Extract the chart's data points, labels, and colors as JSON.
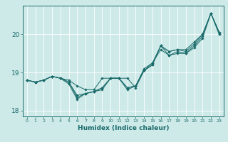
{
  "xlabel": "Humidex (Indice chaleur)",
  "ylabel": "",
  "bg_color": "#ceeae8",
  "line_color": "#1a6b6b",
  "grid_color": "#ffffff",
  "xlim": [
    -0.5,
    23.5
  ],
  "ylim": [
    17.85,
    20.75
  ],
  "yticks": [
    18,
    19,
    20
  ],
  "xticks": [
    0,
    1,
    2,
    3,
    4,
    5,
    6,
    7,
    8,
    9,
    10,
    11,
    12,
    13,
    14,
    15,
    16,
    17,
    18,
    19,
    20,
    21,
    22,
    23
  ],
  "series": [
    [
      18.8,
      18.75,
      18.8,
      18.9,
      18.85,
      18.8,
      18.65,
      18.55,
      18.55,
      18.85,
      18.85,
      18.85,
      18.85,
      18.6,
      19.05,
      19.2,
      19.7,
      19.55,
      19.6,
      19.6,
      19.8,
      20.0,
      20.55,
      20.05
    ],
    [
      18.8,
      18.75,
      18.8,
      18.9,
      18.85,
      18.75,
      18.4,
      18.45,
      18.5,
      18.6,
      18.85,
      18.85,
      18.6,
      18.65,
      19.05,
      19.2,
      19.7,
      19.55,
      19.6,
      19.55,
      19.75,
      20.0,
      20.55,
      20.05
    ],
    [
      18.8,
      18.75,
      18.8,
      18.9,
      18.85,
      18.75,
      18.35,
      18.45,
      18.5,
      18.6,
      18.85,
      18.85,
      18.6,
      18.65,
      19.05,
      19.25,
      19.7,
      19.45,
      19.55,
      19.5,
      19.7,
      19.95,
      20.55,
      20.0
    ],
    [
      18.8,
      18.75,
      18.8,
      18.9,
      18.85,
      18.7,
      18.3,
      18.45,
      18.5,
      18.55,
      18.85,
      18.85,
      18.55,
      18.65,
      19.1,
      19.25,
      19.6,
      19.45,
      19.5,
      19.5,
      19.65,
      19.9,
      20.55,
      20.0
    ]
  ]
}
